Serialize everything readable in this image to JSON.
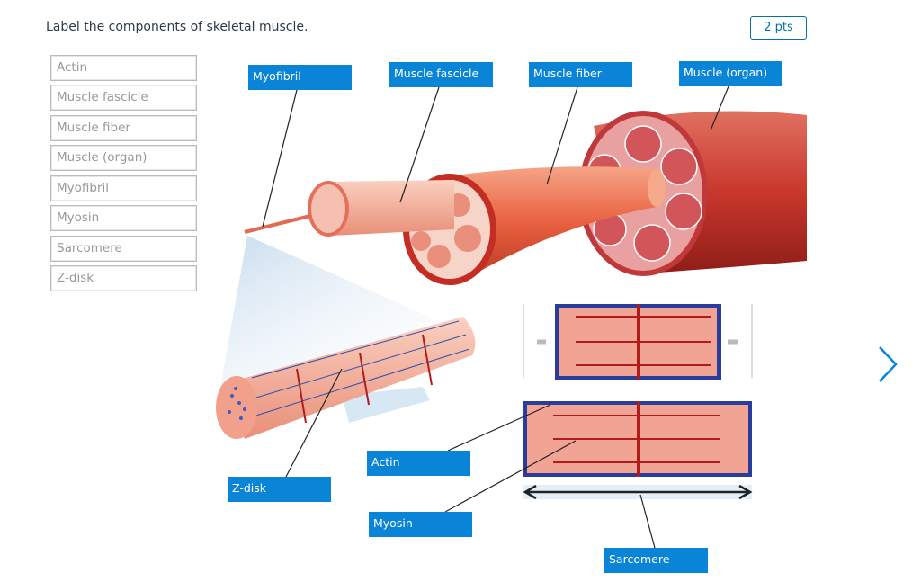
{
  "question": "Label the components of skeletal muscle.",
  "points": "2 pts",
  "word_bank": [
    "Actin",
    "Muscle fascicle",
    "Muscle fiber",
    "Muscle (organ)",
    "Myofibril",
    "Myosin",
    "Sarcomere",
    "Z-disk"
  ],
  "labels": [
    "Myofibril",
    "Muscle fascicle",
    "Muscle fiber",
    "Muscle (organ)",
    "Actin",
    "Z-disk",
    "Myosin",
    "Sarcomere"
  ]
}
